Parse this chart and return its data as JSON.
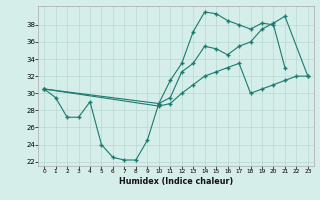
{
  "xlabel": "Humidex (Indice chaleur)",
  "bg_color": "#d5eeea",
  "line_color": "#1a7a6e",
  "grid_color": "#b8d8d4",
  "ylim": [
    21.5,
    40.2
  ],
  "yticks": [
    22,
    24,
    26,
    28,
    30,
    32,
    34,
    36,
    38
  ],
  "xlim": [
    -0.5,
    23.5
  ],
  "xticks": [
    0,
    1,
    2,
    3,
    4,
    5,
    6,
    7,
    8,
    9,
    10,
    11,
    12,
    13,
    14,
    15,
    16,
    17,
    18,
    19,
    20,
    21,
    22,
    23
  ],
  "line1_x": [
    0,
    1,
    2,
    3,
    4,
    5,
    6,
    7,
    8,
    9,
    10,
    11,
    12,
    13,
    14,
    15,
    16,
    17,
    18,
    19,
    20,
    21
  ],
  "line1_y": [
    30.5,
    29.5,
    27.2,
    27.2,
    29.0,
    24.0,
    22.5,
    22.2,
    22.2,
    24.5,
    28.8,
    31.5,
    33.5,
    37.2,
    39.5,
    39.3,
    38.5,
    38.0,
    37.5,
    38.2,
    38.0,
    33.0
  ],
  "line2_x": [
    0,
    10,
    11,
    12,
    13,
    14,
    15,
    16,
    17,
    18,
    19,
    20,
    21,
    23
  ],
  "line2_y": [
    30.5,
    28.8,
    29.5,
    32.5,
    33.5,
    35.5,
    35.2,
    34.5,
    35.5,
    36.0,
    37.5,
    38.2,
    39.0,
    32.0
  ],
  "line3_x": [
    0,
    10,
    11,
    12,
    13,
    14,
    15,
    16,
    17,
    18,
    19,
    20,
    21,
    22,
    23
  ],
  "line3_y": [
    30.5,
    28.5,
    28.8,
    30.0,
    31.0,
    32.0,
    32.5,
    33.0,
    33.5,
    30.0,
    30.5,
    31.0,
    31.5,
    32.0,
    32.0
  ]
}
